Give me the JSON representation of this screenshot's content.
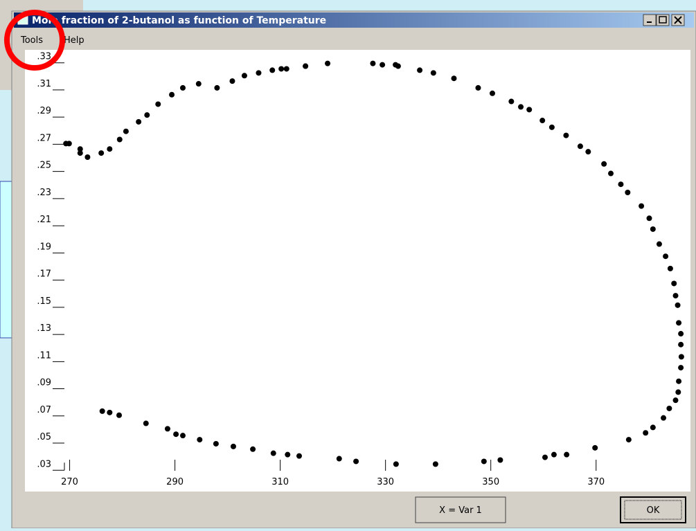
{
  "window": {
    "title": "Mole fraction of 2-butanol as function of Temperature",
    "menu": [
      "Tools",
      "Help"
    ],
    "buttons": [
      "X = Var 1",
      "OK"
    ]
  },
  "chart_data": {
    "type": "scatter",
    "color": "#000000",
    "xlim": [
      269.4,
      387.4
    ],
    "ylim": [
      0.023,
      0.338
    ],
    "xticks": [
      270,
      290,
      310,
      330,
      350,
      370
    ],
    "yticks": [
      {
        "value": 0.03,
        "label": ".03"
      },
      {
        "value": 0.05,
        "label": ".05"
      },
      {
        "value": 0.07,
        "label": ".07"
      },
      {
        "value": 0.09,
        "label": ".09"
      },
      {
        "value": 0.11,
        "label": ".11"
      },
      {
        "value": 0.13,
        "label": ".13"
      },
      {
        "value": 0.15,
        "label": ".15"
      },
      {
        "value": 0.17,
        "label": ".17"
      },
      {
        "value": 0.19,
        "label": ".19"
      },
      {
        "value": 0.21,
        "label": ".21"
      },
      {
        "value": 0.23,
        "label": ".23"
      },
      {
        "value": 0.25,
        "label": ".25"
      },
      {
        "value": 0.27,
        "label": ".27"
      },
      {
        "value": 0.29,
        "label": ".29"
      },
      {
        "value": 0.31,
        "label": ".31"
      },
      {
        "value": 0.33,
        "label": ".33"
      }
    ],
    "x": [
      269.3,
      269.9,
      272.0,
      272.0,
      273.4,
      276.0,
      277.6,
      279.5,
      280.7,
      283.1,
      284.7,
      286.8,
      289.4,
      291.5,
      294.5,
      298.0,
      300.9,
      303.2,
      305.9,
      308.5,
      310.2,
      311.2,
      314.8,
      314.8,
      319.0,
      327.6,
      329.4,
      331.9,
      332.4,
      336.5,
      339.1,
      343.0,
      347.6,
      350.3,
      353.9,
      355.7,
      357.3,
      359.8,
      361.6,
      364.3,
      367.0,
      368.5,
      371.5,
      372.8,
      374.7,
      376.0,
      378.6,
      380.1,
      380.8,
      382.0,
      383.2,
      384.1,
      384.8,
      385.1,
      385.5,
      385.7,
      386.1,
      386.1,
      386.2,
      386.1,
      385.7,
      385.6,
      385.1,
      383.9,
      382.8,
      380.8,
      379.4,
      376.2,
      276.2,
      277.6,
      279.4,
      284.5,
      288.6,
      290.2,
      291.5,
      294.7,
      297.8,
      301.1,
      304.8,
      308.7,
      311.4,
      313.6,
      321.2,
      324.4,
      332.0,
      339.5,
      348.7,
      351.8,
      360.3,
      362.0,
      364.4,
      369.8
    ],
    "values": [
      0.269,
      0.269,
      0.265,
      0.262,
      0.259,
      0.262,
      0.265,
      0.272,
      0.278,
      0.285,
      0.29,
      0.298,
      0.305,
      0.31,
      0.313,
      0.31,
      0.315,
      0.319,
      0.321,
      0.323,
      0.324,
      0.324,
      0.326,
      0.326,
      0.328,
      0.328,
      0.327,
      0.327,
      0.326,
      0.323,
      0.321,
      0.317,
      0.31,
      0.306,
      0.3,
      0.296,
      0.294,
      0.286,
      0.281,
      0.275,
      0.267,
      0.263,
      0.254,
      0.247,
      0.239,
      0.233,
      0.223,
      0.214,
      0.206,
      0.195,
      0.186,
      0.177,
      0.166,
      0.157,
      0.15,
      0.137,
      0.129,
      0.121,
      0.112,
      0.104,
      0.094,
      0.086,
      0.08,
      0.074,
      0.067,
      0.06,
      0.056,
      0.051,
      0.072,
      0.071,
      0.069,
      0.063,
      0.059,
      0.055,
      0.054,
      0.051,
      0.048,
      0.046,
      0.044,
      0.041,
      0.04,
      0.039,
      0.037,
      0.035,
      0.033,
      0.033,
      0.035,
      0.036,
      0.038,
      0.04,
      0.04,
      0.045
    ]
  }
}
